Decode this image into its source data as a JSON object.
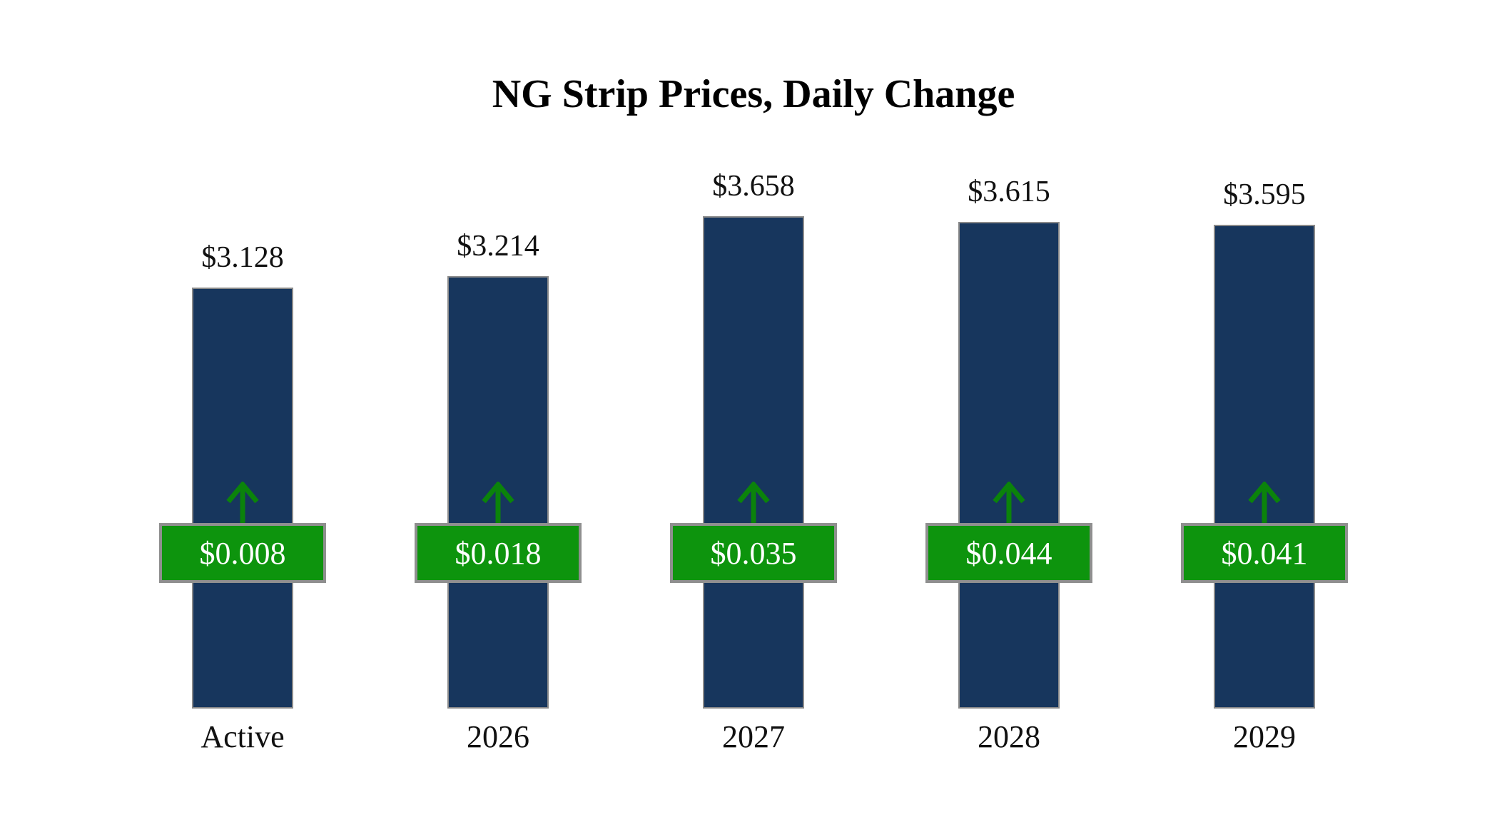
{
  "title": "NG Strip Prices, Daily Change",
  "chart_data": {
    "type": "bar",
    "title": "NG Strip Prices, Daily Change",
    "categories": [
      "Active",
      "2026",
      "2027",
      "2028",
      "2029"
    ],
    "values": [
      3.128,
      3.214,
      3.658,
      3.615,
      3.595
    ],
    "value_labels": [
      "$3.128",
      "$3.214",
      "$3.658",
      "$3.615",
      "$3.595"
    ],
    "changes": [
      0.008,
      0.018,
      0.035,
      0.044,
      0.041
    ],
    "change_labels": [
      "$0.008",
      "$0.018",
      "$0.035",
      "$0.044",
      "$0.041"
    ],
    "change_direction": "up",
    "ylim": [
      0,
      3.658
    ],
    "grid": false,
    "legend": "none",
    "colors": {
      "bar": "#17365d",
      "bar_border": "#8a8a8a",
      "badge": "#0d940d",
      "badge_border": "#8f8f8f",
      "badge_text": "#ffffff",
      "arrow": "#0b830b",
      "text": "#111111",
      "background": "#ffffff"
    }
  }
}
